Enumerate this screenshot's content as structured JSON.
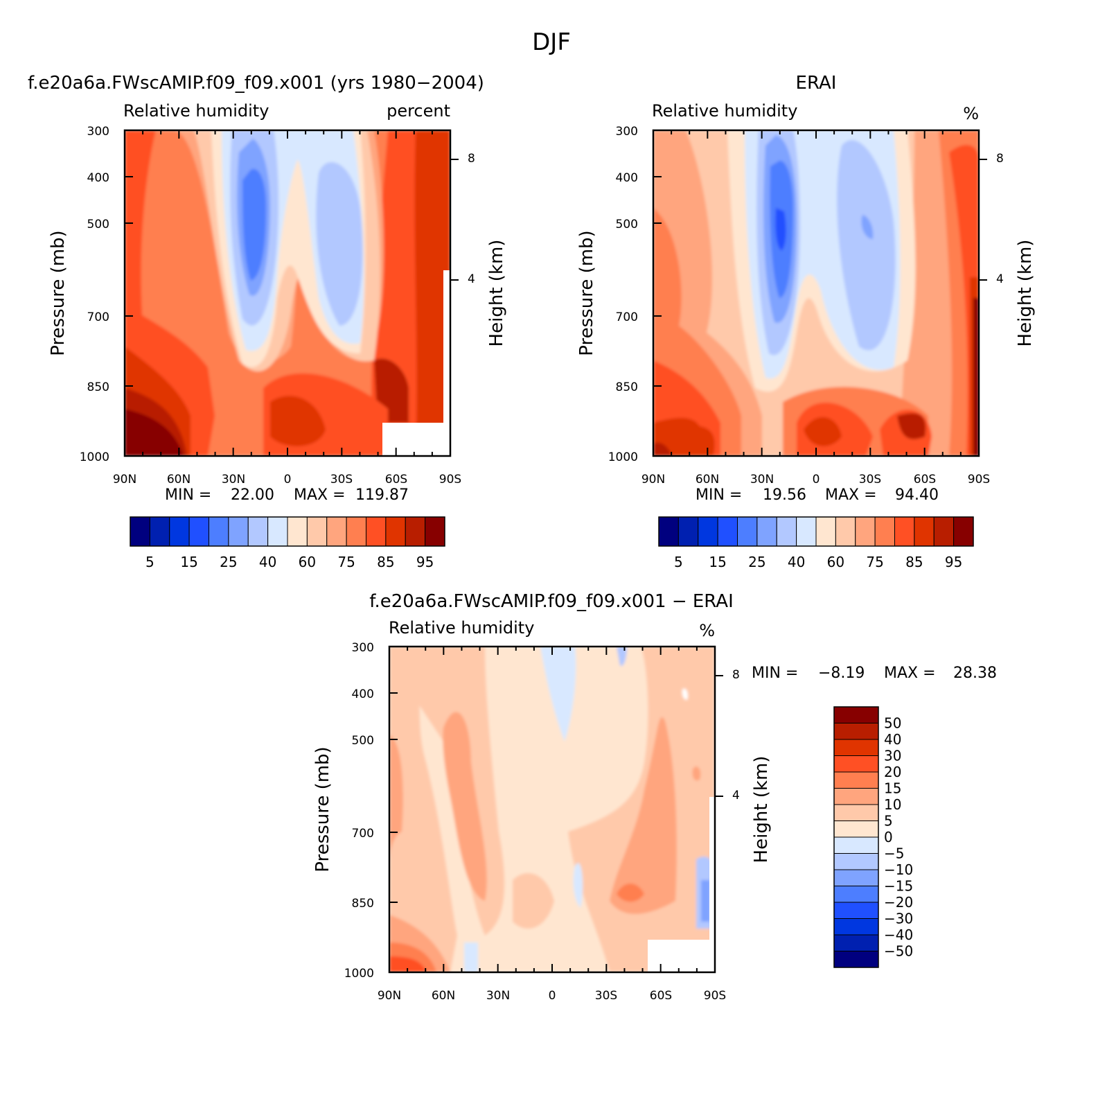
{
  "figure_title": "DJF",
  "colors": {
    "abs_levels": [
      "#00007f",
      "#0020b0",
      "#0037e0",
      "#2050ff",
      "#4d7eff",
      "#7fa3ff",
      "#b2c8ff",
      "#d8e8ff",
      "#ffe6d0",
      "#ffc9aa",
      "#ffa57e",
      "#ff7f50",
      "#ff5024",
      "#e03400",
      "#b81e00",
      "#870000"
    ],
    "diff_levels": [
      "#00007f",
      "#0020b0",
      "#0037e0",
      "#2050ff",
      "#4d7eff",
      "#7fa3ff",
      "#b2c8ff",
      "#d8e8ff",
      "#ffe6d0",
      "#ffc9aa",
      "#ffa57e",
      "#ff7f50",
      "#ff5024",
      "#e03400",
      "#b81e00",
      "#870000"
    ]
  },
  "chart_data": [
    {
      "type": "heatmap",
      "title": "f.e20a6a.FWscAMIP.f09_f09.x001 (yrs 1980−2004)",
      "left_label": "Relative humidity",
      "right_label": "percent",
      "xlabel": "",
      "ylabel": "Pressure (mb)",
      "y2label": "Height (km)",
      "x_ticks": [
        "90N",
        "60N",
        "30N",
        "0",
        "30S",
        "60S",
        "90S"
      ],
      "y_ticks": [
        "300",
        "400",
        "500",
        "700",
        "850",
        "1000"
      ],
      "y2_ticks": [
        "8",
        "4"
      ],
      "min_label": "MIN =",
      "min_value": "22.00",
      "max_label": "MAX =",
      "max_value": "119.87",
      "colorbar_labels": [
        "5",
        "15",
        "25",
        "40",
        "60",
        "75",
        "85",
        "95"
      ],
      "ylim": [
        1000,
        300
      ],
      "xlim": [
        "90N",
        "90S"
      ]
    },
    {
      "type": "heatmap",
      "title": "ERAI",
      "left_label": "Relative humidity",
      "right_label": "%",
      "xlabel": "",
      "ylabel": "Pressure (mb)",
      "y2label": "Height (km)",
      "x_ticks": [
        "90N",
        "60N",
        "30N",
        "0",
        "30S",
        "60S",
        "90S"
      ],
      "y_ticks": [
        "300",
        "400",
        "500",
        "700",
        "850",
        "1000"
      ],
      "y2_ticks": [
        "8",
        "4"
      ],
      "min_label": "MIN =",
      "min_value": "19.56",
      "max_label": "MAX =",
      "max_value": "94.40",
      "colorbar_labels": [
        "5",
        "15",
        "25",
        "40",
        "60",
        "75",
        "85",
        "95"
      ],
      "ylim": [
        1000,
        300
      ],
      "xlim": [
        "90N",
        "90S"
      ]
    },
    {
      "type": "heatmap",
      "title": "f.e20a6a.FWscAMIP.f09_f09.x001 − ERAI",
      "left_label": "Relative humidity",
      "right_label": "%",
      "xlabel": "",
      "ylabel": "Pressure (mb)",
      "y2label": "Height (km)",
      "x_ticks": [
        "90N",
        "60N",
        "30N",
        "0",
        "30S",
        "60S",
        "90S"
      ],
      "y_ticks": [
        "300",
        "400",
        "500",
        "700",
        "850",
        "1000"
      ],
      "y2_ticks": [
        "8",
        "4"
      ],
      "min_label": "MIN =",
      "min_value": "−8.19",
      "max_label": "MAX =",
      "max_value": "28.38",
      "colorbar_labels": [
        "50",
        "40",
        "30",
        "20",
        "15",
        "10",
        "5",
        "0",
        "−5",
        "−10",
        "−15",
        "−20",
        "−30",
        "−40",
        "−50"
      ],
      "ylim": [
        1000,
        300
      ],
      "xlim": [
        "90N",
        "90S"
      ]
    }
  ]
}
